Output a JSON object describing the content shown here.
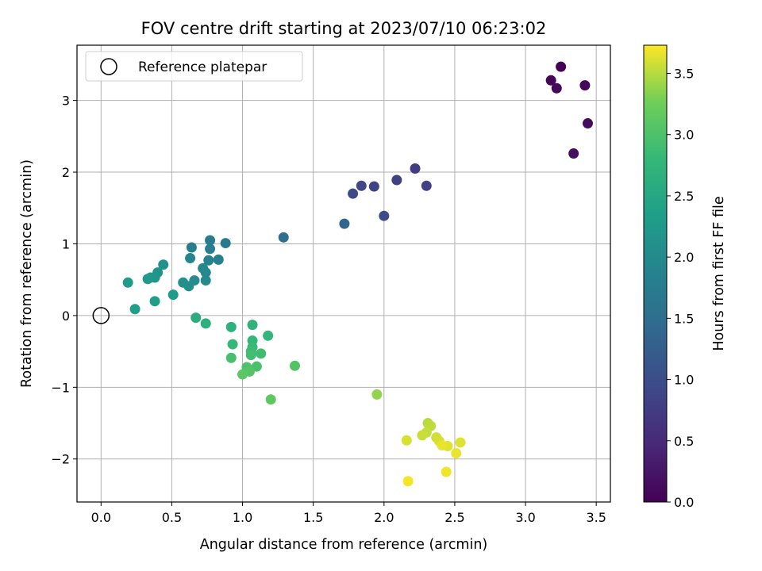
{
  "chart_data": {
    "type": "scatter",
    "title": "FOV centre drift starting at 2023/07/10 06:23:02",
    "xlabel": "Angular distance from reference (arcmin)",
    "ylabel": "Rotation from reference (arcmin)",
    "xlim": [
      -0.17,
      3.6
    ],
    "ylim": [
      -2.6,
      3.77
    ],
    "xticks": [
      0.0,
      0.5,
      1.0,
      1.5,
      2.0,
      2.5,
      3.0,
      3.5
    ],
    "xtick_labels": [
      "0.0",
      "0.5",
      "1.0",
      "1.5",
      "2.0",
      "2.5",
      "3.0",
      "3.5"
    ],
    "yticks": [
      -2,
      -1,
      0,
      1,
      2,
      3
    ],
    "ytick_labels": [
      "−2",
      "−1",
      "0",
      "1",
      "2",
      "3"
    ],
    "grid": true,
    "legend": {
      "placement": "upper-left",
      "entries": [
        "Reference platepar"
      ]
    },
    "reference_point": {
      "label": "Reference platepar",
      "x": 0.0,
      "y": 0.0
    },
    "colorbar": {
      "label": "Hours from first FF file",
      "colormap": "viridis",
      "range": [
        0.0,
        3.73
      ],
      "ticks": [
        0.0,
        0.5,
        1.0,
        1.5,
        2.0,
        2.5,
        3.0,
        3.5
      ],
      "tick_labels": [
        "0.0",
        "0.5",
        "1.0",
        "1.5",
        "2.0",
        "2.5",
        "3.0",
        "3.5"
      ]
    },
    "points": [
      {
        "x": 3.25,
        "y": 3.47,
        "c": 0.02
      },
      {
        "x": 3.18,
        "y": 3.28,
        "c": 0.05
      },
      {
        "x": 3.22,
        "y": 3.17,
        "c": 0.08
      },
      {
        "x": 3.42,
        "y": 3.21,
        "c": 0.1
      },
      {
        "x": 3.44,
        "y": 2.68,
        "c": 0.13
      },
      {
        "x": 3.34,
        "y": 2.26,
        "c": 0.16
      },
      {
        "x": 2.22,
        "y": 2.05,
        "c": 0.75
      },
      {
        "x": 2.09,
        "y": 1.89,
        "c": 0.8
      },
      {
        "x": 2.3,
        "y": 1.81,
        "c": 0.83
      },
      {
        "x": 1.93,
        "y": 1.8,
        "c": 0.86
      },
      {
        "x": 1.84,
        "y": 1.81,
        "c": 0.9
      },
      {
        "x": 1.78,
        "y": 1.7,
        "c": 0.93
      },
      {
        "x": 2.0,
        "y": 1.39,
        "c": 0.97
      },
      {
        "x": 1.72,
        "y": 1.28,
        "c": 1.35
      },
      {
        "x": 1.29,
        "y": 1.09,
        "c": 1.5
      },
      {
        "x": 0.88,
        "y": 1.01,
        "c": 1.72
      },
      {
        "x": 0.77,
        "y": 1.05,
        "c": 1.76
      },
      {
        "x": 0.77,
        "y": 0.93,
        "c": 1.79
      },
      {
        "x": 0.64,
        "y": 0.95,
        "c": 1.82
      },
      {
        "x": 0.83,
        "y": 0.78,
        "c": 1.85
      },
      {
        "x": 0.76,
        "y": 0.77,
        "c": 1.88
      },
      {
        "x": 0.63,
        "y": 0.8,
        "c": 1.91
      },
      {
        "x": 0.72,
        "y": 0.66,
        "c": 1.94
      },
      {
        "x": 0.74,
        "y": 0.6,
        "c": 1.97
      },
      {
        "x": 0.74,
        "y": 0.49,
        "c": 2.0
      },
      {
        "x": 0.66,
        "y": 0.49,
        "c": 2.03
      },
      {
        "x": 0.62,
        "y": 0.41,
        "c": 2.06
      },
      {
        "x": 0.58,
        "y": 0.46,
        "c": 2.09
      },
      {
        "x": 0.44,
        "y": 0.71,
        "c": 2.12
      },
      {
        "x": 0.4,
        "y": 0.6,
        "c": 2.15
      },
      {
        "x": 0.38,
        "y": 0.53,
        "c": 2.18
      },
      {
        "x": 0.35,
        "y": 0.53,
        "c": 2.21
      },
      {
        "x": 0.33,
        "y": 0.51,
        "c": 2.24
      },
      {
        "x": 0.19,
        "y": 0.46,
        "c": 2.27
      },
      {
        "x": 0.51,
        "y": 0.29,
        "c": 2.3
      },
      {
        "x": 0.38,
        "y": 0.2,
        "c": 2.33
      },
      {
        "x": 0.24,
        "y": 0.09,
        "c": 2.36
      },
      {
        "x": 0.67,
        "y": -0.03,
        "c": 2.62
      },
      {
        "x": 0.74,
        "y": -0.11,
        "c": 2.65
      },
      {
        "x": 0.92,
        "y": -0.16,
        "c": 2.68
      },
      {
        "x": 1.07,
        "y": -0.13,
        "c": 2.71
      },
      {
        "x": 1.18,
        "y": -0.28,
        "c": 2.74
      },
      {
        "x": 1.07,
        "y": -0.35,
        "c": 2.77
      },
      {
        "x": 0.93,
        "y": -0.4,
        "c": 2.8
      },
      {
        "x": 1.07,
        "y": -0.44,
        "c": 2.83
      },
      {
        "x": 1.06,
        "y": -0.5,
        "c": 2.86
      },
      {
        "x": 1.13,
        "y": -0.53,
        "c": 2.89
      },
      {
        "x": 1.06,
        "y": -0.55,
        "c": 2.92
      },
      {
        "x": 0.92,
        "y": -0.59,
        "c": 2.95
      },
      {
        "x": 1.1,
        "y": -0.71,
        "c": 2.98
      },
      {
        "x": 1.03,
        "y": -0.72,
        "c": 3.01
      },
      {
        "x": 1.37,
        "y": -0.7,
        "c": 3.04
      },
      {
        "x": 1.05,
        "y": -0.78,
        "c": 3.07
      },
      {
        "x": 1.0,
        "y": -0.82,
        "c": 3.1
      },
      {
        "x": 1.2,
        "y": -1.17,
        "c": 3.13
      },
      {
        "x": 1.95,
        "y": -1.1,
        "c": 3.38
      },
      {
        "x": 2.31,
        "y": -1.5,
        "c": 3.5
      },
      {
        "x": 2.33,
        "y": -1.54,
        "c": 3.52
      },
      {
        "x": 2.3,
        "y": -1.63,
        "c": 3.54
      },
      {
        "x": 2.27,
        "y": -1.67,
        "c": 3.56
      },
      {
        "x": 2.37,
        "y": -1.7,
        "c": 3.58
      },
      {
        "x": 2.39,
        "y": -1.75,
        "c": 3.6
      },
      {
        "x": 2.16,
        "y": -1.74,
        "c": 3.61
      },
      {
        "x": 2.54,
        "y": -1.77,
        "c": 3.63
      },
      {
        "x": 2.45,
        "y": -1.82,
        "c": 3.64
      },
      {
        "x": 2.41,
        "y": -1.81,
        "c": 3.66
      },
      {
        "x": 2.51,
        "y": -1.92,
        "c": 3.67
      },
      {
        "x": 2.44,
        "y": -2.18,
        "c": 3.69
      },
      {
        "x": 2.17,
        "y": -2.31,
        "c": 3.7
      }
    ]
  }
}
